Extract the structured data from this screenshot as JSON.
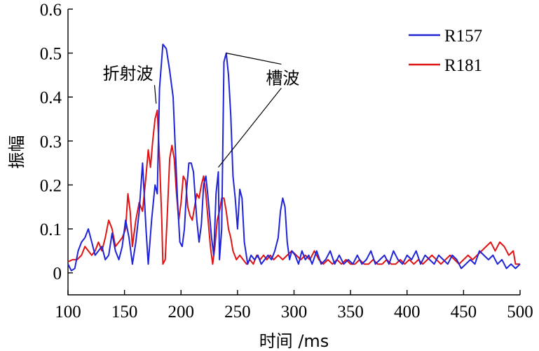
{
  "chart_data": {
    "type": "line",
    "xlabel": "时间 /ms",
    "ylabel": "振幅",
    "xlim": [
      100,
      500
    ],
    "ylim": [
      -0.05,
      0.6
    ],
    "xticks": [
      100,
      150,
      200,
      250,
      300,
      350,
      400,
      450,
      500
    ],
    "yticks": [
      0,
      0.1,
      0.2,
      0.3,
      0.4,
      0.5,
      0.6
    ],
    "xtick_labels": [
      "100",
      "150",
      "200",
      "250",
      "300",
      "350",
      "400",
      "450",
      "500"
    ],
    "ytick_labels": [
      "0",
      "0.1",
      "0.2",
      "0.3",
      "0.4",
      "0.5",
      "0.6"
    ],
    "legend": "top-right",
    "grid": false,
    "series": [
      {
        "name": "R157",
        "color": "#1f24d6",
        "points": [
          [
            100,
            0.02
          ],
          [
            103,
            0.005
          ],
          [
            106,
            0.01
          ],
          [
            109,
            0.05
          ],
          [
            112,
            0.07
          ],
          [
            115,
            0.08
          ],
          [
            118,
            0.1
          ],
          [
            121,
            0.07
          ],
          [
            124,
            0.04
          ],
          [
            127,
            0.05
          ],
          [
            130,
            0.06
          ],
          [
            133,
            0.03
          ],
          [
            136,
            0.04
          ],
          [
            139,
            0.09
          ],
          [
            142,
            0.05
          ],
          [
            145,
            0.03
          ],
          [
            148,
            0.06
          ],
          [
            151,
            0.12
          ],
          [
            154,
            0.08
          ],
          [
            157,
            0.02
          ],
          [
            160,
            0.07
          ],
          [
            163,
            0.14
          ],
          [
            166,
            0.25
          ],
          [
            169,
            0.1
          ],
          [
            171,
            0.02
          ],
          [
            174,
            0.12
          ],
          [
            177,
            0.2
          ],
          [
            179,
            0.18
          ],
          [
            181,
            0.42
          ],
          [
            184,
            0.52
          ],
          [
            187,
            0.51
          ],
          [
            190,
            0.46
          ],
          [
            193,
            0.4
          ],
          [
            195,
            0.28
          ],
          [
            197,
            0.16
          ],
          [
            199,
            0.07
          ],
          [
            201,
            0.06
          ],
          [
            203,
            0.1
          ],
          [
            205,
            0.19
          ],
          [
            207,
            0.25
          ],
          [
            209,
            0.25
          ],
          [
            211,
            0.23
          ],
          [
            214,
            0.12
          ],
          [
            216,
            0.07
          ],
          [
            218,
            0.11
          ],
          [
            220,
            0.2
          ],
          [
            222,
            0.22
          ],
          [
            224,
            0.17
          ],
          [
            227,
            0.08
          ],
          [
            229,
            0.04
          ],
          [
            231,
            0.18
          ],
          [
            233,
            0.23
          ],
          [
            234,
            0.03
          ],
          [
            236,
            0.1
          ],
          [
            238,
            0.48
          ],
          [
            240,
            0.5
          ],
          [
            242,
            0.45
          ],
          [
            244,
            0.36
          ],
          [
            246,
            0.22
          ],
          [
            248,
            0.17
          ],
          [
            250,
            0.1
          ],
          [
            252,
            0.19
          ],
          [
            254,
            0.17
          ],
          [
            256,
            0.07
          ],
          [
            259,
            0.02
          ],
          [
            262,
            0.04
          ],
          [
            265,
            0.03
          ],
          [
            268,
            0.04
          ],
          [
            271,
            0.02
          ],
          [
            274,
            0.03
          ],
          [
            277,
            0.04
          ],
          [
            280,
            0.03
          ],
          [
            283,
            0.05
          ],
          [
            286,
            0.08
          ],
          [
            288,
            0.14
          ],
          [
            290,
            0.17
          ],
          [
            292,
            0.15
          ],
          [
            294,
            0.07
          ],
          [
            296,
            0.03
          ],
          [
            298,
            0.05
          ],
          [
            301,
            0.04
          ],
          [
            304,
            0.02
          ],
          [
            307,
            0.05
          ],
          [
            310,
            0.03
          ],
          [
            313,
            0.04
          ],
          [
            316,
            0.02
          ],
          [
            320,
            0.05
          ],
          [
            324,
            0.02
          ],
          [
            328,
            0.03
          ],
          [
            332,
            0.05
          ],
          [
            336,
            0.02
          ],
          [
            340,
            0.04
          ],
          [
            344,
            0.02
          ],
          [
            348,
            0.03
          ],
          [
            352,
            0.02
          ],
          [
            356,
            0.04
          ],
          [
            360,
            0.02
          ],
          [
            364,
            0.03
          ],
          [
            368,
            0.05
          ],
          [
            372,
            0.02
          ],
          [
            376,
            0.03
          ],
          [
            380,
            0.04
          ],
          [
            384,
            0.02
          ],
          [
            388,
            0.05
          ],
          [
            392,
            0.03
          ],
          [
            396,
            0.02
          ],
          [
            400,
            0.04
          ],
          [
            404,
            0.03
          ],
          [
            408,
            0.05
          ],
          [
            412,
            0.02
          ],
          [
            416,
            0.04
          ],
          [
            420,
            0.03
          ],
          [
            424,
            0.02
          ],
          [
            428,
            0.04
          ],
          [
            432,
            0.03
          ],
          [
            436,
            0.02
          ],
          [
            440,
            0.04
          ],
          [
            444,
            0.03
          ],
          [
            448,
            0.01
          ],
          [
            452,
            0.02
          ],
          [
            456,
            0.03
          ],
          [
            460,
            0.02
          ],
          [
            464,
            0.05
          ],
          [
            468,
            0.04
          ],
          [
            472,
            0.03
          ],
          [
            476,
            0.04
          ],
          [
            480,
            0.02
          ],
          [
            484,
            0.03
          ],
          [
            488,
            0.01
          ],
          [
            492,
            0.02
          ],
          [
            496,
            0.01
          ],
          [
            500,
            0.02
          ]
        ]
      },
      {
        "name": "R181",
        "color": "#e01414",
        "points": [
          [
            100,
            0.025
          ],
          [
            104,
            0.03
          ],
          [
            108,
            0.03
          ],
          [
            112,
            0.04
          ],
          [
            115,
            0.06
          ],
          [
            118,
            0.05
          ],
          [
            121,
            0.04
          ],
          [
            124,
            0.05
          ],
          [
            127,
            0.07
          ],
          [
            130,
            0.05
          ],
          [
            133,
            0.08
          ],
          [
            136,
            0.12
          ],
          [
            139,
            0.1
          ],
          [
            142,
            0.06
          ],
          [
            145,
            0.07
          ],
          [
            148,
            0.08
          ],
          [
            151,
            0.1
          ],
          [
            153,
            0.18
          ],
          [
            155,
            0.14
          ],
          [
            157,
            0.06
          ],
          [
            160,
            0.12
          ],
          [
            163,
            0.16
          ],
          [
            166,
            0.14
          ],
          [
            169,
            0.22
          ],
          [
            171,
            0.28
          ],
          [
            173,
            0.24
          ],
          [
            175,
            0.3
          ],
          [
            177,
            0.35
          ],
          [
            179,
            0.37
          ],
          [
            181,
            0.26
          ],
          [
            183,
            0.12
          ],
          [
            184,
            0.02
          ],
          [
            186,
            0.03
          ],
          [
            188,
            0.14
          ],
          [
            190,
            0.26
          ],
          [
            192,
            0.29
          ],
          [
            194,
            0.26
          ],
          [
            196,
            0.18
          ],
          [
            198,
            0.12
          ],
          [
            200,
            0.16
          ],
          [
            202,
            0.22
          ],
          [
            204,
            0.21
          ],
          [
            206,
            0.15
          ],
          [
            208,
            0.13
          ],
          [
            210,
            0.12
          ],
          [
            212,
            0.15
          ],
          [
            214,
            0.18
          ],
          [
            216,
            0.17
          ],
          [
            218,
            0.2
          ],
          [
            220,
            0.22
          ],
          [
            222,
            0.18
          ],
          [
            224,
            0.12
          ],
          [
            226,
            0.06
          ],
          [
            228,
            0.02
          ],
          [
            230,
            0.06
          ],
          [
            232,
            0.12
          ],
          [
            234,
            0.14
          ],
          [
            236,
            0.17
          ],
          [
            238,
            0.17
          ],
          [
            240,
            0.14
          ],
          [
            242,
            0.1
          ],
          [
            244,
            0.08
          ],
          [
            246,
            0.05
          ],
          [
            249,
            0.03
          ],
          [
            252,
            0.04
          ],
          [
            255,
            0.03
          ],
          [
            258,
            0.02
          ],
          [
            261,
            0.03
          ],
          [
            264,
            0.02
          ],
          [
            267,
            0.04
          ],
          [
            270,
            0.03
          ],
          [
            273,
            0.04
          ],
          [
            276,
            0.03
          ],
          [
            279,
            0.04
          ],
          [
            282,
            0.03
          ],
          [
            286,
            0.04
          ],
          [
            290,
            0.03
          ],
          [
            294,
            0.04
          ],
          [
            298,
            0.05
          ],
          [
            302,
            0.04
          ],
          [
            306,
            0.03
          ],
          [
            310,
            0.04
          ],
          [
            314,
            0.03
          ],
          [
            318,
            0.05
          ],
          [
            322,
            0.03
          ],
          [
            326,
            0.02
          ],
          [
            330,
            0.03
          ],
          [
            334,
            0.02
          ],
          [
            338,
            0.03
          ],
          [
            342,
            0.02
          ],
          [
            346,
            0.03
          ],
          [
            350,
            0.02
          ],
          [
            354,
            0.02
          ],
          [
            358,
            0.03
          ],
          [
            362,
            0.02
          ],
          [
            366,
            0.02
          ],
          [
            370,
            0.03
          ],
          [
            374,
            0.02
          ],
          [
            378,
            0.02
          ],
          [
            382,
            0.03
          ],
          [
            386,
            0.02
          ],
          [
            390,
            0.02
          ],
          [
            394,
            0.03
          ],
          [
            398,
            0.02
          ],
          [
            402,
            0.03
          ],
          [
            406,
            0.02
          ],
          [
            410,
            0.03
          ],
          [
            414,
            0.02
          ],
          [
            418,
            0.03
          ],
          [
            422,
            0.04
          ],
          [
            426,
            0.03
          ],
          [
            430,
            0.02
          ],
          [
            434,
            0.03
          ],
          [
            438,
            0.04
          ],
          [
            442,
            0.03
          ],
          [
            446,
            0.02
          ],
          [
            450,
            0.03
          ],
          [
            454,
            0.04
          ],
          [
            458,
            0.03
          ],
          [
            462,
            0.04
          ],
          [
            466,
            0.05
          ],
          [
            470,
            0.06
          ],
          [
            474,
            0.07
          ],
          [
            478,
            0.05
          ],
          [
            482,
            0.07
          ],
          [
            486,
            0.06
          ],
          [
            490,
            0.04
          ],
          [
            494,
            0.05
          ],
          [
            496,
            0.02
          ],
          [
            500,
            0.02
          ]
        ]
      }
    ],
    "annotations": [
      {
        "text": "折射波",
        "anchor": [
          153,
          0.44
        ],
        "targets": [
          [
            178,
            0.385
          ]
        ]
      },
      {
        "text": "槽波",
        "anchor": [
          290,
          0.43
        ],
        "targets": [
          [
            240,
            0.5
          ],
          [
            233,
            0.24
          ]
        ]
      }
    ]
  }
}
